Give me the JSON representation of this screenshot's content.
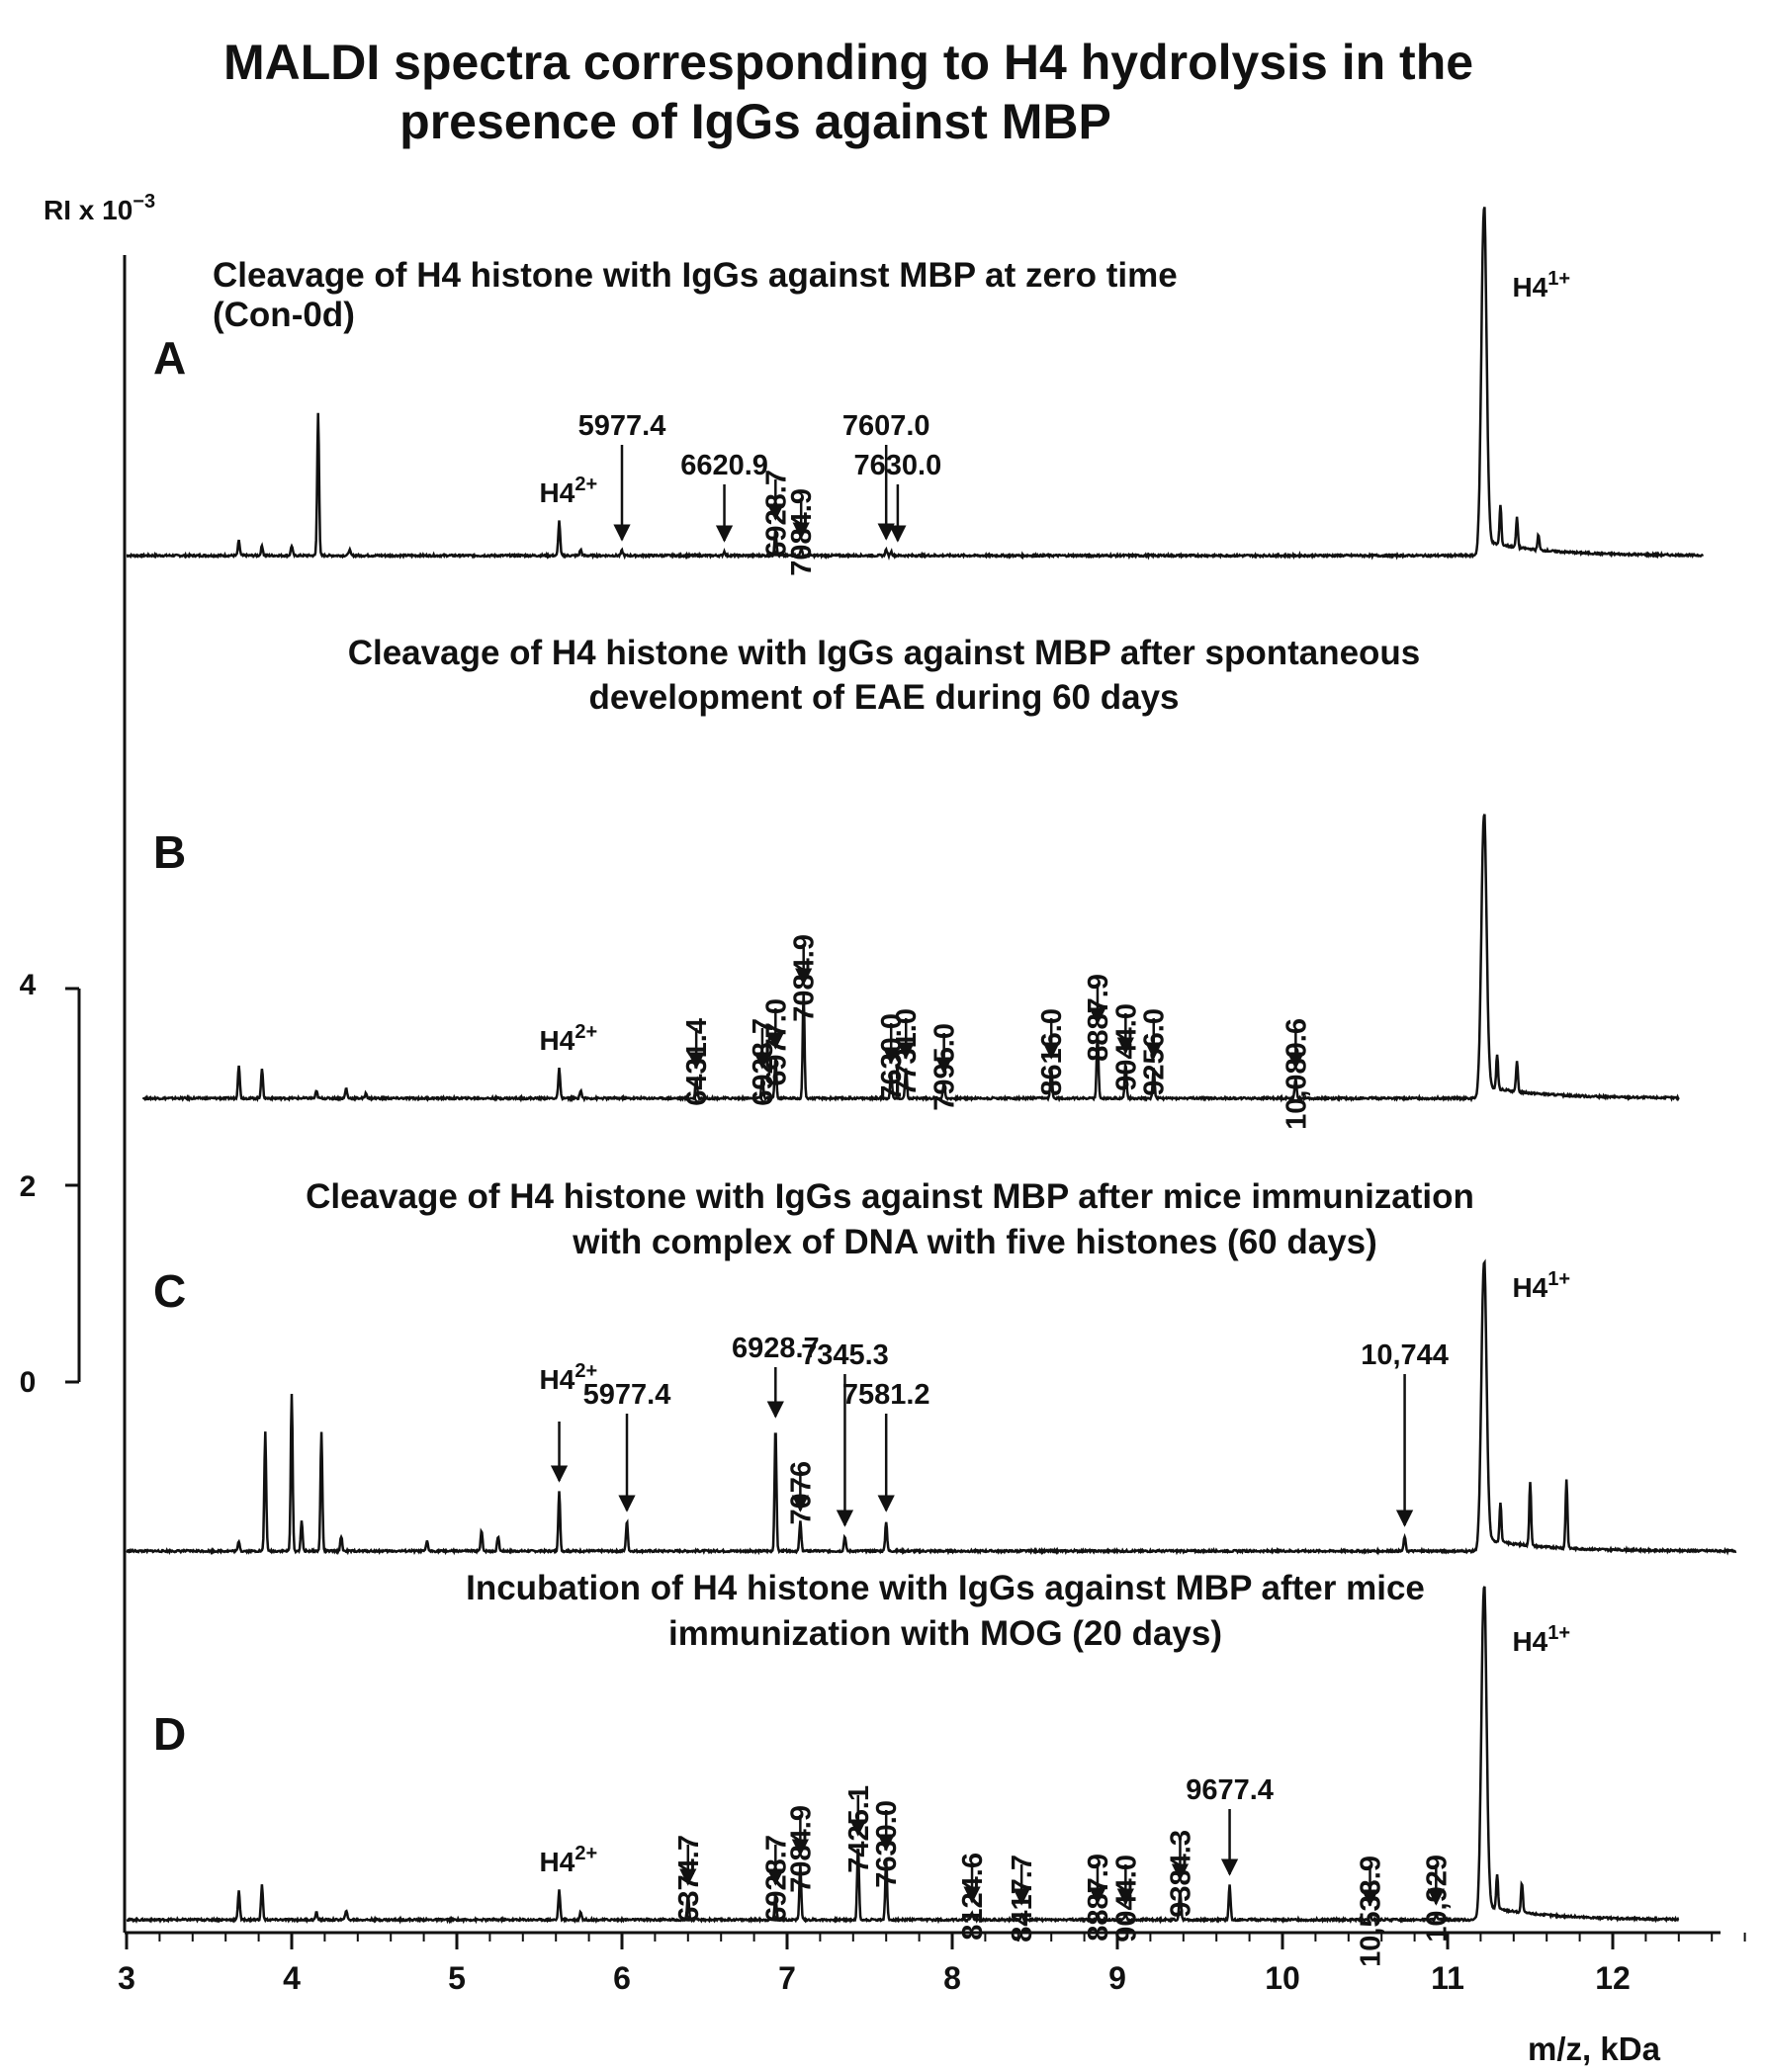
{
  "figure": {
    "title_lines": [
      "MALDI spectra corresponding to H4 hydrolysis in the",
      "presence of IgGs  against MBP"
    ],
    "y_axis": {
      "title": "RI x 10",
      "title_exponent": "−3",
      "scale_bar_ticks": [
        "4",
        "2",
        "0"
      ]
    }
  },
  "chart_data": {
    "type": "line",
    "x_axis": {
      "label": "m/z, kDa",
      "range": [
        3,
        12.8
      ],
      "tick_labels": [
        "3",
        "4",
        "5",
        "6",
        "7",
        "8",
        "9",
        "10",
        "11",
        "12"
      ]
    },
    "series": [
      {
        "letter": "A",
        "title_lines": [
          "Cleavage of H4 histone with IgGs against MBP  at zero time",
          "(Con-0d)"
        ],
        "x_range": [
          3,
          12.55
        ],
        "peaks": [
          {
            "x": 3.68,
            "h": 0.15
          },
          {
            "x": 3.82,
            "h": 0.1
          },
          {
            "x": 4.0,
            "h": 0.1
          },
          {
            "x": 4.16,
            "h": 1.45
          },
          {
            "x": 4.35,
            "h": 0.06
          },
          {
            "x": 5.62,
            "h": 0.35
          },
          {
            "x": 5.75,
            "h": 0.06
          },
          {
            "x": 6.0,
            "h": 0.05
          },
          {
            "x": 6.62,
            "h": 0.04
          },
          {
            "x": 6.93,
            "h": 0.26
          },
          {
            "x": 7.085,
            "h": 0.07
          },
          {
            "x": 7.6,
            "h": 0.06
          },
          {
            "x": 7.63,
            "h": 0.04
          },
          {
            "x": 11.22,
            "h": 3.5
          },
          {
            "x": 11.32,
            "h": 0.4
          },
          {
            "x": 11.42,
            "h": 0.3
          },
          {
            "x": 11.55,
            "h": 0.15
          }
        ],
        "h4_labels": [
          {
            "x": 5.62,
            "base": "H4",
            "charge": "2+"
          },
          {
            "x": 11.38,
            "base": "H4",
            "charge": "1+"
          }
        ],
        "annotations": [
          {
            "x": 6.0,
            "label": "5977.4",
            "rotated": false
          },
          {
            "x": 6.62,
            "label": "6620.9",
            "rotated": false
          },
          {
            "x": 6.93,
            "label": "6928.7",
            "rotated": true
          },
          {
            "x": 7.085,
            "label": "7084.9",
            "rotated": true
          },
          {
            "x": 7.6,
            "label": "7607.0",
            "rotated": false
          },
          {
            "x": 7.67,
            "label": "7630.0",
            "rotated": false
          }
        ]
      },
      {
        "letter": "B",
        "title_lines": [
          "Cleavage of H4 histone with IgGs against MBP  after spontaneous",
          "development of EAE during 60 days"
        ],
        "x_range": [
          3.1,
          12.4
        ],
        "peaks": [
          {
            "x": 3.68,
            "h": 0.34
          },
          {
            "x": 3.82,
            "h": 0.3
          },
          {
            "x": 4.15,
            "h": 0.07
          },
          {
            "x": 4.33,
            "h": 0.1
          },
          {
            "x": 4.45,
            "h": 0.05
          },
          {
            "x": 5.62,
            "h": 0.3
          },
          {
            "x": 5.75,
            "h": 0.08
          },
          {
            "x": 6.45,
            "h": 0.2
          },
          {
            "x": 6.85,
            "h": 0.2
          },
          {
            "x": 6.93,
            "h": 0.4
          },
          {
            "x": 7.1,
            "h": 1.05
          },
          {
            "x": 7.63,
            "h": 0.25
          },
          {
            "x": 7.72,
            "h": 0.3
          },
          {
            "x": 7.95,
            "h": 0.15
          },
          {
            "x": 8.6,
            "h": 0.3
          },
          {
            "x": 8.88,
            "h": 0.65
          },
          {
            "x": 9.05,
            "h": 0.35
          },
          {
            "x": 9.22,
            "h": 0.3
          },
          {
            "x": 10.08,
            "h": 0.2
          },
          {
            "x": 11.22,
            "h": 2.85
          },
          {
            "x": 11.3,
            "h": 0.35
          },
          {
            "x": 11.42,
            "h": 0.3
          }
        ],
        "h4_labels": [
          {
            "x": 5.62,
            "base": "H4",
            "charge": "2+"
          }
        ],
        "annotations": [
          {
            "x": 6.45,
            "label": "6431.4",
            "rotated": true
          },
          {
            "x": 6.85,
            "label": "6928.7",
            "rotated": true
          },
          {
            "x": 6.93,
            "label": "6977.0",
            "rotated": true
          },
          {
            "x": 7.1,
            "label": "7084.9",
            "rotated": true
          },
          {
            "x": 7.63,
            "label": "7630.0",
            "rotated": true
          },
          {
            "x": 7.72,
            "label": "7731.0",
            "rotated": true
          },
          {
            "x": 7.95,
            "label": "7995.0",
            "rotated": true
          },
          {
            "x": 8.6,
            "label": "8616.0",
            "rotated": true
          },
          {
            "x": 8.88,
            "label": "8887.9",
            "rotated": true
          },
          {
            "x": 9.05,
            "label": "9044.0",
            "rotated": true
          },
          {
            "x": 9.22,
            "label": "9256.0",
            "rotated": true
          },
          {
            "x": 10.08,
            "label": "10,089.6",
            "rotated": true
          }
        ]
      },
      {
        "letter": "C",
        "title_lines": [
          "Cleavage  of H4 histone with IgGs against MBP after mice immunization",
          "with  complex of DNA with five histones (60 days)"
        ],
        "x_range": [
          3.0,
          12.75
        ],
        "peaks": [
          {
            "x": 3.68,
            "h": 0.1
          },
          {
            "x": 3.84,
            "h": 1.2
          },
          {
            "x": 4.0,
            "h": 1.6
          },
          {
            "x": 4.06,
            "h": 0.3
          },
          {
            "x": 4.18,
            "h": 1.2
          },
          {
            "x": 4.3,
            "h": 0.15
          },
          {
            "x": 4.82,
            "h": 0.1
          },
          {
            "x": 5.15,
            "h": 0.2
          },
          {
            "x": 5.25,
            "h": 0.15
          },
          {
            "x": 5.62,
            "h": 0.6
          },
          {
            "x": 6.03,
            "h": 0.3
          },
          {
            "x": 6.93,
            "h": 1.25
          },
          {
            "x": 7.08,
            "h": 0.3
          },
          {
            "x": 7.35,
            "h": 0.15
          },
          {
            "x": 7.6,
            "h": 0.3
          },
          {
            "x": 10.74,
            "h": 0.15
          },
          {
            "x": 11.22,
            "h": 2.9
          },
          {
            "x": 11.32,
            "h": 0.4
          },
          {
            "x": 11.5,
            "h": 0.65
          },
          {
            "x": 11.72,
            "h": 0.7
          }
        ],
        "h4_labels": [
          {
            "x": 5.62,
            "base": "H4",
            "charge": "2+"
          },
          {
            "x": 11.38,
            "base": "H4",
            "charge": "1+"
          }
        ],
        "annotations": [
          {
            "x": 5.62,
            "label": "",
            "rotated": false
          },
          {
            "x": 6.03,
            "label": "5977.4",
            "rotated": false
          },
          {
            "x": 6.93,
            "label": "6928.7",
            "rotated": false
          },
          {
            "x": 7.08,
            "label": "7076",
            "rotated": true
          },
          {
            "x": 7.35,
            "label": "7345.3",
            "rotated": false
          },
          {
            "x": 7.6,
            "label": "7581.2",
            "rotated": false
          },
          {
            "x": 10.74,
            "label": "10,744",
            "rotated": false
          }
        ]
      },
      {
        "letter": "D",
        "title_lines": [
          "Incubation of H4 histone with IgGs against MBP after mice",
          "immunization with  MOG (20 days)"
        ],
        "x_range": [
          3.0,
          12.4
        ],
        "peaks": [
          {
            "x": 3.68,
            "h": 0.3
          },
          {
            "x": 3.82,
            "h": 0.35
          },
          {
            "x": 4.15,
            "h": 0.07
          },
          {
            "x": 4.33,
            "h": 0.1
          },
          {
            "x": 5.62,
            "h": 0.3
          },
          {
            "x": 5.75,
            "h": 0.08
          },
          {
            "x": 6.4,
            "h": 0.25
          },
          {
            "x": 6.93,
            "h": 0.25
          },
          {
            "x": 7.08,
            "h": 0.55
          },
          {
            "x": 7.43,
            "h": 0.75
          },
          {
            "x": 7.6,
            "h": 0.6
          },
          {
            "x": 8.12,
            "h": 0.07
          },
          {
            "x": 8.42,
            "h": 0.05
          },
          {
            "x": 8.88,
            "h": 0.06
          },
          {
            "x": 9.05,
            "h": 0.05
          },
          {
            "x": 9.38,
            "h": 0.3
          },
          {
            "x": 9.68,
            "h": 0.35
          },
          {
            "x": 10.53,
            "h": 0.04
          },
          {
            "x": 10.93,
            "h": 0.05
          },
          {
            "x": 11.22,
            "h": 3.35
          },
          {
            "x": 11.3,
            "h": 0.35
          },
          {
            "x": 11.45,
            "h": 0.3
          }
        ],
        "h4_labels": [
          {
            "x": 5.62,
            "base": "H4",
            "charge": "2+"
          },
          {
            "x": 11.38,
            "base": "H4",
            "charge": "1+"
          }
        ],
        "annotations": [
          {
            "x": 6.4,
            "label": "6374.7",
            "rotated": true
          },
          {
            "x": 6.93,
            "label": "6928.7",
            "rotated": true
          },
          {
            "x": 7.08,
            "label": "7084.9",
            "rotated": true
          },
          {
            "x": 7.43,
            "label": "7425.1",
            "rotated": true
          },
          {
            "x": 7.6,
            "label": "7630.0",
            "rotated": true
          },
          {
            "x": 8.12,
            "label": "8124.6",
            "rotated": true
          },
          {
            "x": 8.42,
            "label": "8417.7",
            "rotated": true
          },
          {
            "x": 8.88,
            "label": "8887.9",
            "rotated": true
          },
          {
            "x": 9.05,
            "label": "9044.0",
            "rotated": true
          },
          {
            "x": 9.38,
            "label": "9384.3",
            "rotated": true
          },
          {
            "x": 9.68,
            "label": "9677.4",
            "rotated": false
          },
          {
            "x": 10.53,
            "label": "10,533.9",
            "rotated": true
          },
          {
            "x": 10.93,
            "label": "10,929",
            "rotated": true
          }
        ]
      }
    ]
  }
}
